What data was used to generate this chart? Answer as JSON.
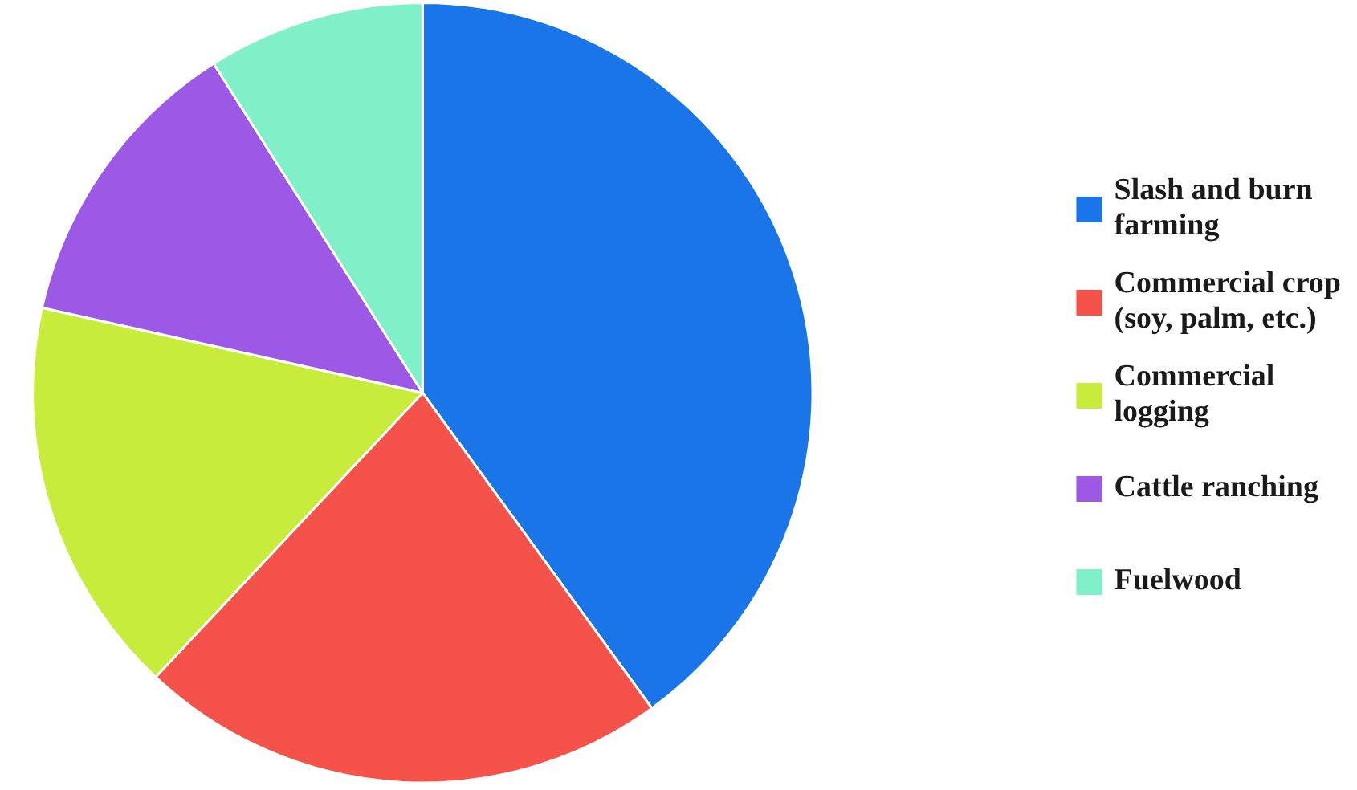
{
  "chart_data": {
    "type": "pie",
    "categories": [
      "Slash and burn farming",
      "Commercial crop (soy, palm, etc.)",
      "Commercial logging",
      "Cattle ranching",
      "Fuelwood"
    ],
    "values": [
      40,
      22,
      16.5,
      12.5,
      9
    ],
    "colors": [
      "#1a75e8",
      "#f5524a",
      "#c8ec3c",
      "#9b59e6",
      "#80f0c8"
    ],
    "legend": "right"
  }
}
